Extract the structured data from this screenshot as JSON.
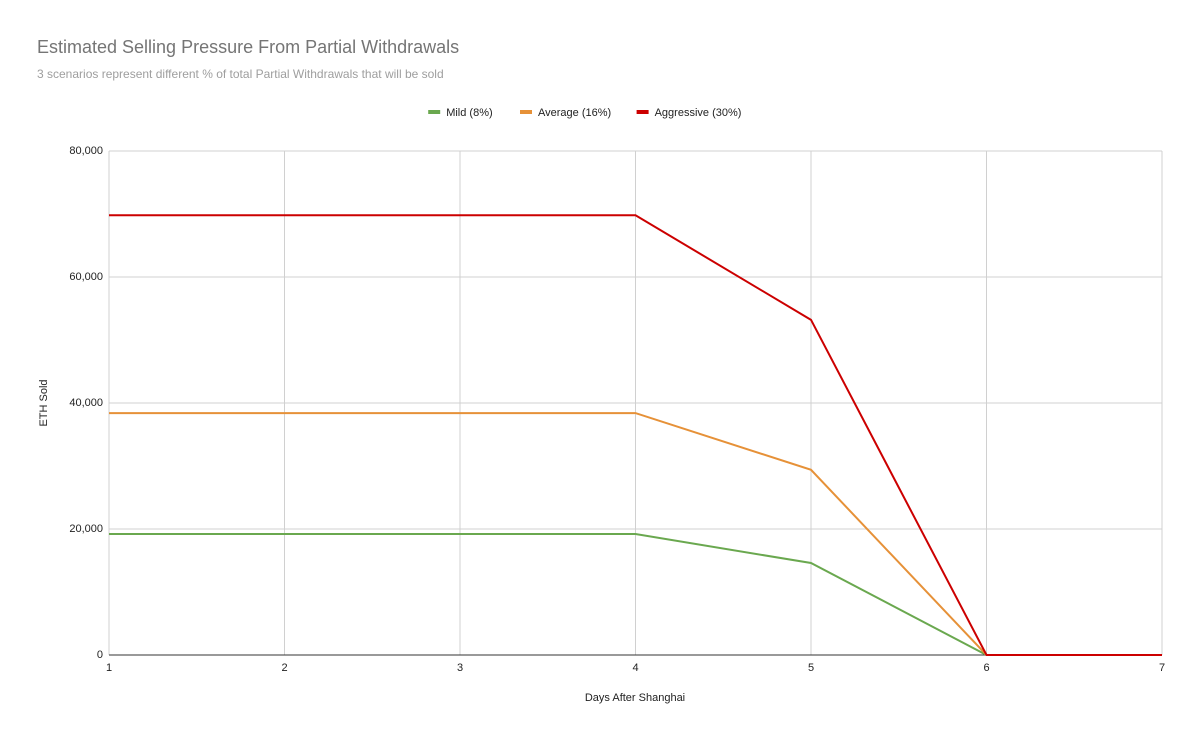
{
  "chart_data": {
    "type": "line",
    "title": "Estimated Selling Pressure From Partial Withdrawals",
    "subtitle": "3 scenarios represent different % of total Partial Withdrawals that will be sold",
    "x_label": "Days After Shanghai",
    "y_label": "ETH Sold",
    "x": [
      1,
      2,
      3,
      4,
      5,
      6,
      7
    ],
    "series": [
      {
        "name": "Mild (8%)",
        "color": "#6aa84f",
        "values": [
          19200,
          19200,
          19200,
          19200,
          14600,
          0,
          0
        ]
      },
      {
        "name": "Average (16%)",
        "color": "#e69138",
        "values": [
          38400,
          38400,
          38400,
          38400,
          29400,
          0,
          0
        ]
      },
      {
        "name": "Aggressive (30%)",
        "color": "#cc0000",
        "values": [
          69800,
          69800,
          69800,
          69800,
          53200,
          0,
          0
        ]
      }
    ],
    "xlim": [
      1,
      7
    ],
    "xticks": [
      1,
      2,
      3,
      4,
      5,
      6,
      7
    ],
    "ylim": [
      0,
      80000
    ],
    "yticks": [
      0,
      {
        "value": 20000,
        "label": "20,000"
      },
      {
        "value": 40000,
        "label": "40,000"
      },
      {
        "value": 60000,
        "label": "60,000"
      },
      {
        "value": 80000,
        "label": "80,000"
      }
    ],
    "grid": true,
    "legend_position": "top"
  }
}
